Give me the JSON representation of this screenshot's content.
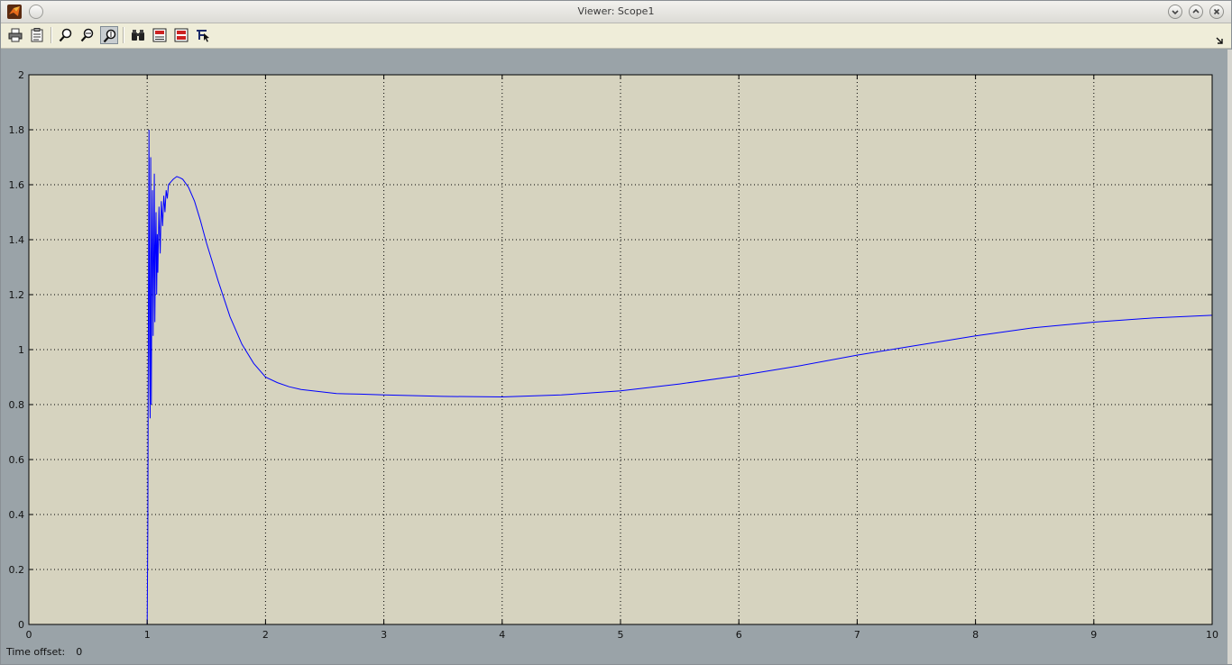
{
  "window": {
    "title": "Viewer: Scope1"
  },
  "toolbar": {
    "buttons": [
      {
        "icon": "print-icon",
        "name": "print-button"
      },
      {
        "icon": "parameters-icon",
        "name": "parameters-button"
      },
      {
        "icon": "zoom-in-icon",
        "name": "zoom-button"
      },
      {
        "icon": "zoom-x-icon",
        "name": "zoom-x-button"
      },
      {
        "icon": "zoom-y-icon",
        "name": "zoom-y-button",
        "active": true
      },
      {
        "icon": "binoculars-icon",
        "name": "autoscale-button"
      },
      {
        "icon": "save-axes-icon",
        "name": "save-axes-button"
      },
      {
        "icon": "restore-axes-icon",
        "name": "restore-axes-button"
      },
      {
        "icon": "signal-selection-icon",
        "name": "signal-selection-button"
      }
    ]
  },
  "status": {
    "time_offset_label": "Time offset:",
    "time_offset_value": "0"
  },
  "colors": {
    "axes_background": "#d6d3bf",
    "figure_background": "#9aa3a8",
    "trace": "#0000ff",
    "grid": "#000000"
  },
  "chart_data": {
    "type": "line",
    "title": "",
    "xlabel": "",
    "ylabel": "",
    "xlim": [
      0,
      10
    ],
    "ylim": [
      0,
      2
    ],
    "xticks": [
      0,
      1,
      2,
      3,
      4,
      5,
      6,
      7,
      8,
      9,
      10
    ],
    "yticks": [
      0,
      0.2,
      0.4,
      0.6,
      0.8,
      1,
      1.2,
      1.4,
      1.6,
      1.8,
      2
    ],
    "xtick_labels": [
      "0",
      "1",
      "2",
      "3",
      "4",
      "5",
      "6",
      "7",
      "8",
      "9",
      "10"
    ],
    "ytick_labels": [
      "0",
      "0.2",
      "0.4",
      "0.6",
      "0.8",
      "1",
      "1.2",
      "1.4",
      "1.6",
      "1.8",
      "2"
    ],
    "grid": true,
    "series": [
      {
        "x": [
          0,
          1.0,
          1.005,
          1.01,
          1.015,
          1.02,
          1.025,
          1.03,
          1.035,
          1.04,
          1.045,
          1.05,
          1.055,
          1.06,
          1.065,
          1.07,
          1.075,
          1.08,
          1.085,
          1.09,
          1.1,
          1.11,
          1.12,
          1.13,
          1.14,
          1.15,
          1.16,
          1.17,
          1.18,
          1.2,
          1.22,
          1.25,
          1.28,
          1.3,
          1.35,
          1.4,
          1.45,
          1.5,
          1.6,
          1.7,
          1.8,
          1.9,
          2.0,
          2.1,
          2.2,
          2.3,
          2.4,
          2.5,
          2.6,
          2.8,
          3.0,
          3.5,
          4.0,
          4.5,
          5.0,
          5.5,
          6.0,
          6.5,
          7.0,
          7.5,
          8.0,
          8.5,
          9.0,
          9.5,
          10.0
        ],
        "values": [
          0,
          0,
          0.35,
          1.1,
          1.8,
          1.0,
          0.75,
          1.7,
          0.8,
          1.35,
          1.58,
          1.05,
          1.3,
          1.64,
          1.1,
          1.38,
          1.5,
          1.2,
          1.42,
          1.28,
          1.52,
          1.35,
          1.54,
          1.45,
          1.56,
          1.5,
          1.58,
          1.55,
          1.6,
          1.61,
          1.62,
          1.63,
          1.625,
          1.62,
          1.59,
          1.54,
          1.47,
          1.39,
          1.25,
          1.12,
          1.02,
          0.95,
          0.9,
          0.88,
          0.865,
          0.855,
          0.85,
          0.845,
          0.84,
          0.838,
          0.835,
          0.83,
          0.828,
          0.835,
          0.85,
          0.875,
          0.905,
          0.94,
          0.98,
          1.015,
          1.05,
          1.08,
          1.1,
          1.115,
          1.125
        ]
      }
    ]
  }
}
